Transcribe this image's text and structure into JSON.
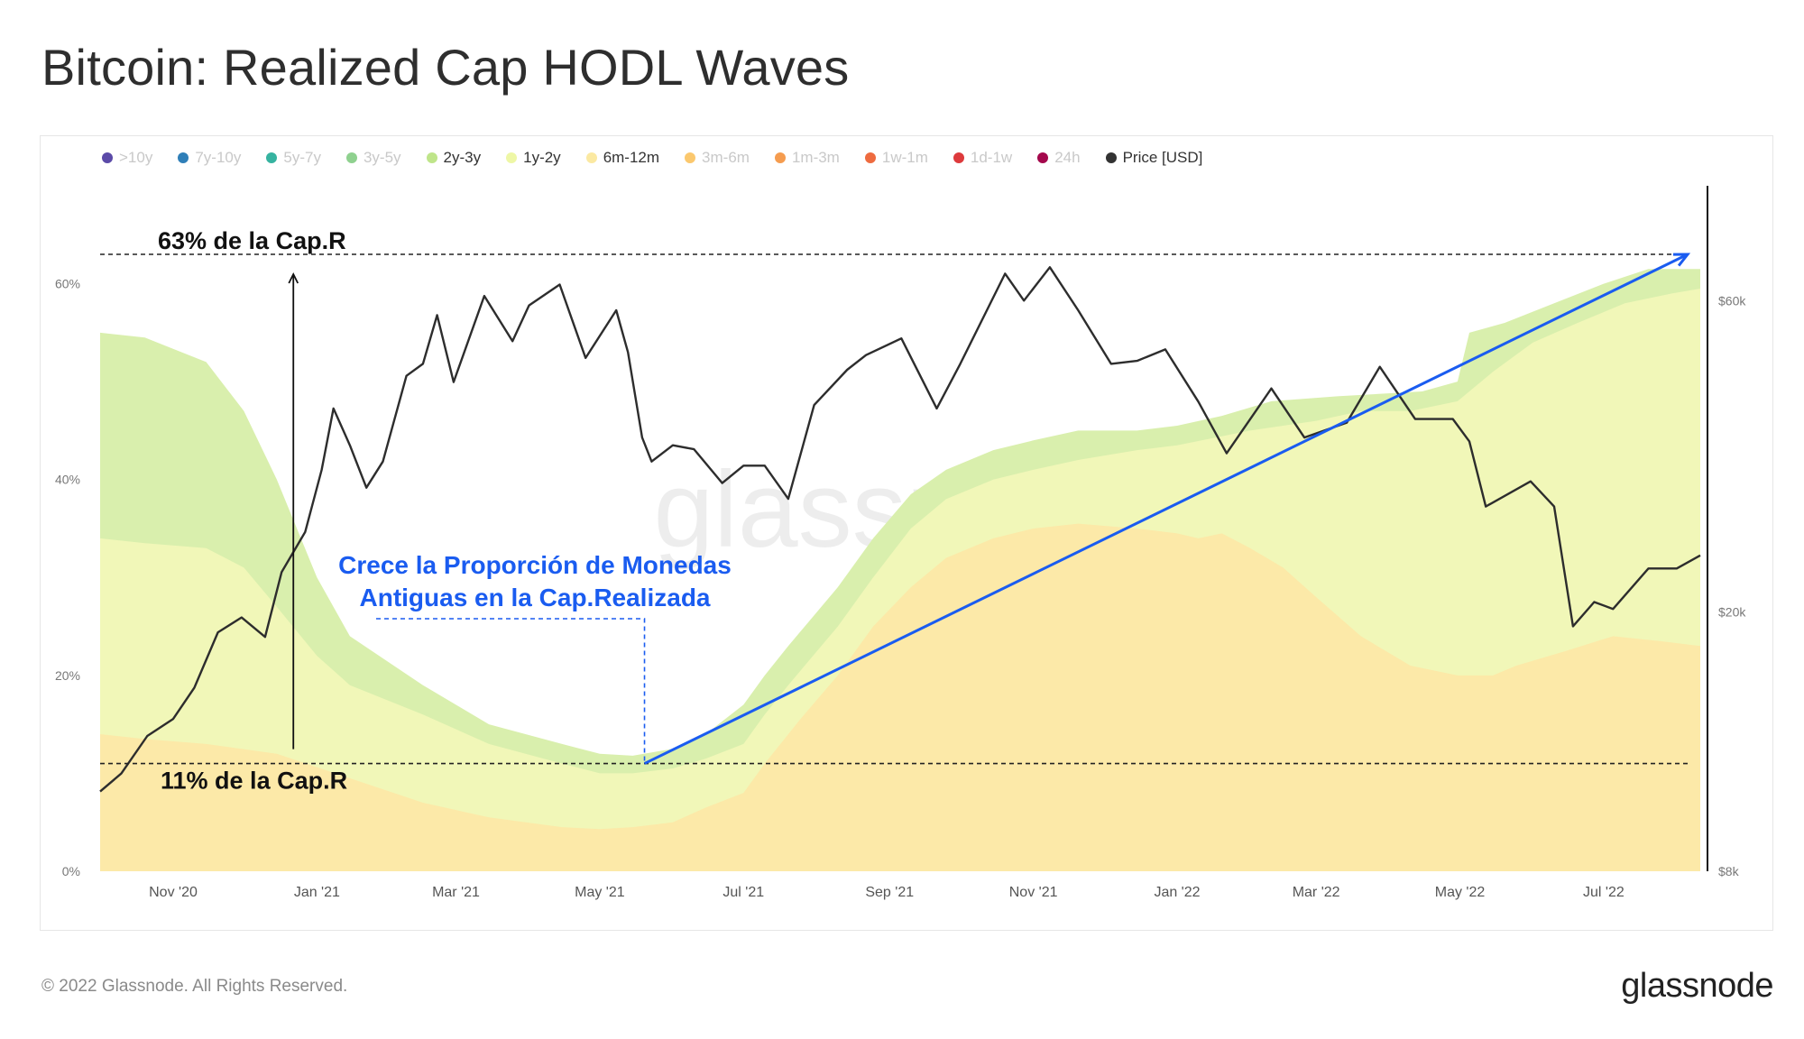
{
  "page": {
    "title": "Bitcoin: Realized Cap HODL Waves",
    "copyright": "© 2022 Glassnode. All Rights Reserved.",
    "logo": "glassnode",
    "watermark": "glassnode"
  },
  "legend": [
    {
      "label": ">10y",
      "color": "#5b4aa8",
      "active": false
    },
    {
      "label": "7y-10y",
      "color": "#2f7fb8",
      "active": false
    },
    {
      "label": "5y-7y",
      "color": "#36b3a0",
      "active": false
    },
    {
      "label": "3y-5y",
      "color": "#8fd18f",
      "active": false
    },
    {
      "label": "2y-3y",
      "color": "#bfe58a",
      "active": true
    },
    {
      "label": "1y-2y",
      "color": "#eef7a6",
      "active": true
    },
    {
      "label": "6m-12m",
      "color": "#fbe9a2",
      "active": true
    },
    {
      "label": "3m-6m",
      "color": "#fbc86e",
      "active": false
    },
    {
      "label": "1m-3m",
      "color": "#f59c4f",
      "active": false
    },
    {
      "label": "1w-1m",
      "color": "#ee6b3f",
      "active": false
    },
    {
      "label": "1d-1w",
      "color": "#dd3a3c",
      "active": false
    },
    {
      "label": "24h",
      "color": "#a4084c",
      "active": false
    },
    {
      "label": "Price [USD]",
      "color": "#333333",
      "active": true
    }
  ],
  "annotations": {
    "top_label": "63% de la Cap.R",
    "bottom_label": "11% de la Cap.R",
    "callout_line1": "Crece la Proporción de Monedas",
    "callout_line2": "Antiguas en la Cap.Realizada",
    "callout_color": "#1a5cf0"
  },
  "chart_data": {
    "type": "area",
    "x_start": "2020-10-01",
    "x_end": "2022-08-11",
    "x_ticks": [
      {
        "label": "Nov '20",
        "date": "2020-11-01"
      },
      {
        "label": "Jan '21",
        "date": "2021-01-01"
      },
      {
        "label": "Mar '21",
        "date": "2021-03-01"
      },
      {
        "label": "May '21",
        "date": "2021-05-01"
      },
      {
        "label": "Jul '21",
        "date": "2021-07-01"
      },
      {
        "label": "Sep '21",
        "date": "2021-09-01"
      },
      {
        "label": "Nov '21",
        "date": "2021-11-01"
      },
      {
        "label": "Jan '22",
        "date": "2022-01-01"
      },
      {
        "label": "Mar '22",
        "date": "2022-03-01"
      },
      {
        "label": "May '22",
        "date": "2022-05-01"
      },
      {
        "label": "Jul '22",
        "date": "2022-07-01"
      }
    ],
    "y_left": {
      "ticks": [
        0,
        20,
        40,
        60
      ],
      "tick_labels": [
        "0%",
        "20%",
        "40%",
        "60%"
      ],
      "range": [
        0,
        70
      ]
    },
    "y_right": {
      "scale": "log",
      "ticks": [
        8000,
        20000,
        60000
      ],
      "tick_labels": [
        "$8k",
        "$20k",
        "$60k"
      ],
      "range": [
        8000,
        90000
      ]
    },
    "reference_lines": [
      63,
      11
    ],
    "series": [
      {
        "name": "6m-12m",
        "color": "#fce9a8",
        "points": [
          [
            "2020-10-01",
            14
          ],
          [
            "2020-10-20",
            13.5
          ],
          [
            "2020-11-15",
            13
          ],
          [
            "2020-12-15",
            12
          ],
          [
            "2021-01-15",
            9.5
          ],
          [
            "2021-02-15",
            7
          ],
          [
            "2021-03-15",
            5.5
          ],
          [
            "2021-04-15",
            4.5
          ],
          [
            "2021-05-01",
            4.3
          ],
          [
            "2021-05-15",
            4.5
          ],
          [
            "2021-06-01",
            5
          ],
          [
            "2021-06-15",
            6.5
          ],
          [
            "2021-07-01",
            8
          ],
          [
            "2021-07-10",
            11
          ],
          [
            "2021-07-25",
            15.5
          ],
          [
            "2021-08-10",
            20
          ],
          [
            "2021-08-25",
            25
          ],
          [
            "2021-09-10",
            29
          ],
          [
            "2021-09-25",
            32
          ],
          [
            "2021-10-15",
            34
          ],
          [
            "2021-11-01",
            35
          ],
          [
            "2021-11-20",
            35.5
          ],
          [
            "2021-12-15",
            35
          ],
          [
            "2022-01-01",
            34.5
          ],
          [
            "2022-01-10",
            34
          ],
          [
            "2022-01-20",
            34.5
          ],
          [
            "2022-02-01",
            33
          ],
          [
            "2022-02-15",
            31
          ],
          [
            "2022-03-01",
            28
          ],
          [
            "2022-03-20",
            24
          ],
          [
            "2022-04-10",
            21
          ],
          [
            "2022-04-30",
            20
          ],
          [
            "2022-05-15",
            20
          ],
          [
            "2022-05-25",
            21
          ],
          [
            "2022-06-15",
            22.5
          ],
          [
            "2022-07-05",
            24
          ],
          [
            "2022-07-25",
            23.5
          ],
          [
            "2022-08-11",
            23
          ]
        ]
      },
      {
        "name": "1y-2y",
        "color": "#f1f7b8",
        "points": [
          [
            "2020-10-01",
            34
          ],
          [
            "2020-10-20",
            33.5
          ],
          [
            "2020-11-15",
            33
          ],
          [
            "2020-12-01",
            31
          ],
          [
            "2020-12-15",
            27
          ],
          [
            "2021-01-01",
            22
          ],
          [
            "2021-01-15",
            19
          ],
          [
            "2021-02-15",
            16
          ],
          [
            "2021-03-15",
            13
          ],
          [
            "2021-04-15",
            11
          ],
          [
            "2021-05-01",
            10
          ],
          [
            "2021-05-15",
            10
          ],
          [
            "2021-06-01",
            10.5
          ],
          [
            "2021-06-15",
            11.5
          ],
          [
            "2021-07-01",
            13
          ],
          [
            "2021-07-10",
            16
          ],
          [
            "2021-07-20",
            19
          ],
          [
            "2021-08-10",
            25
          ],
          [
            "2021-08-25",
            30
          ],
          [
            "2021-09-10",
            35
          ],
          [
            "2021-09-25",
            38
          ],
          [
            "2021-10-15",
            40
          ],
          [
            "2021-11-01",
            41
          ],
          [
            "2021-11-20",
            42
          ],
          [
            "2021-12-15",
            43
          ],
          [
            "2022-01-01",
            43.5
          ],
          [
            "2022-02-01",
            45
          ],
          [
            "2022-03-01",
            46
          ],
          [
            "2022-03-20",
            47
          ],
          [
            "2022-04-10",
            47
          ],
          [
            "2022-04-30",
            48
          ],
          [
            "2022-05-15",
            51
          ],
          [
            "2022-06-01",
            54
          ],
          [
            "2022-06-20",
            56
          ],
          [
            "2022-07-10",
            58
          ],
          [
            "2022-07-30",
            59
          ],
          [
            "2022-08-11",
            59.5
          ]
        ]
      },
      {
        "name": "2y-3y",
        "color": "#d9efad",
        "points": [
          [
            "2020-10-01",
            55
          ],
          [
            "2020-10-20",
            54.5
          ],
          [
            "2020-11-15",
            52
          ],
          [
            "2020-12-01",
            47
          ],
          [
            "2020-12-15",
            40
          ],
          [
            "2021-01-01",
            30
          ],
          [
            "2021-01-15",
            24
          ],
          [
            "2021-02-15",
            19
          ],
          [
            "2021-03-15",
            15
          ],
          [
            "2021-04-15",
            13
          ],
          [
            "2021-05-01",
            12
          ],
          [
            "2021-05-15",
            11.8
          ],
          [
            "2021-06-01",
            12.5
          ],
          [
            "2021-06-15",
            14
          ],
          [
            "2021-07-01",
            17
          ],
          [
            "2021-07-10",
            20
          ],
          [
            "2021-07-20",
            23
          ],
          [
            "2021-08-10",
            29
          ],
          [
            "2021-08-25",
            34
          ],
          [
            "2021-09-10",
            38.5
          ],
          [
            "2021-09-25",
            41
          ],
          [
            "2021-10-15",
            43
          ],
          [
            "2021-11-01",
            44
          ],
          [
            "2021-11-20",
            45
          ],
          [
            "2021-12-15",
            45
          ],
          [
            "2022-01-01",
            45.5
          ],
          [
            "2022-01-20",
            46.5
          ],
          [
            "2022-02-10",
            48
          ],
          [
            "2022-03-10",
            48.5
          ],
          [
            "2022-04-15",
            49
          ],
          [
            "2022-04-30",
            50
          ],
          [
            "2022-05-05",
            55
          ],
          [
            "2022-05-20",
            56
          ],
          [
            "2022-06-10",
            58
          ],
          [
            "2022-07-01",
            60
          ],
          [
            "2022-07-20",
            61.5
          ],
          [
            "2022-08-11",
            61.5
          ]
        ]
      },
      {
        "name": "Price [USD]",
        "color": "#2d2d2d",
        "points": [
          [
            "2020-10-01",
            10600
          ],
          [
            "2020-10-10",
            11300
          ],
          [
            "2020-10-21",
            12900
          ],
          [
            "2020-11-01",
            13700
          ],
          [
            "2020-11-10",
            15300
          ],
          [
            "2020-11-20",
            18600
          ],
          [
            "2020-11-30",
            19600
          ],
          [
            "2020-12-10",
            18300
          ],
          [
            "2020-12-17",
            23000
          ],
          [
            "2020-12-27",
            26500
          ],
          [
            "2021-01-03",
            33000
          ],
          [
            "2021-01-08",
            41000
          ],
          [
            "2021-01-15",
            36000
          ],
          [
            "2021-01-22",
            31000
          ],
          [
            "2021-01-29",
            34000
          ],
          [
            "2021-02-08",
            46000
          ],
          [
            "2021-02-15",
            48000
          ],
          [
            "2021-02-21",
            57000
          ],
          [
            "2021-02-28",
            45000
          ],
          [
            "2021-03-13",
            61000
          ],
          [
            "2021-03-25",
            52000
          ],
          [
            "2021-04-01",
            59000
          ],
          [
            "2021-04-14",
            63500
          ],
          [
            "2021-04-25",
            49000
          ],
          [
            "2021-05-08",
            58000
          ],
          [
            "2021-05-13",
            50000
          ],
          [
            "2021-05-19",
            37000
          ],
          [
            "2021-05-23",
            34000
          ],
          [
            "2021-06-01",
            36000
          ],
          [
            "2021-06-10",
            35500
          ],
          [
            "2021-06-22",
            31500
          ],
          [
            "2021-07-01",
            33500
          ],
          [
            "2021-07-10",
            33500
          ],
          [
            "2021-07-20",
            29800
          ],
          [
            "2021-07-31",
            41500
          ],
          [
            "2021-08-14",
            47000
          ],
          [
            "2021-08-22",
            49500
          ],
          [
            "2021-09-06",
            52500
          ],
          [
            "2021-09-21",
            41000
          ],
          [
            "2021-10-01",
            48000
          ],
          [
            "2021-10-20",
            66000
          ],
          [
            "2021-10-28",
            60000
          ],
          [
            "2021-11-08",
            67500
          ],
          [
            "2021-11-20",
            58000
          ],
          [
            "2021-12-04",
            48000
          ],
          [
            "2021-12-15",
            48500
          ],
          [
            "2021-12-27",
            50500
          ],
          [
            "2022-01-10",
            42000
          ],
          [
            "2022-01-22",
            35000
          ],
          [
            "2022-02-10",
            44000
          ],
          [
            "2022-02-24",
            37000
          ],
          [
            "2022-03-14",
            39000
          ],
          [
            "2022-03-28",
            47500
          ],
          [
            "2022-04-12",
            39500
          ],
          [
            "2022-04-28",
            39500
          ],
          [
            "2022-05-05",
            36500
          ],
          [
            "2022-05-12",
            29000
          ],
          [
            "2022-05-31",
            31700
          ],
          [
            "2022-06-10",
            29000
          ],
          [
            "2022-06-18",
            19000
          ],
          [
            "2022-06-27",
            20700
          ],
          [
            "2022-07-05",
            20200
          ],
          [
            "2022-07-20",
            23300
          ],
          [
            "2022-08-01",
            23300
          ],
          [
            "2022-08-11",
            24400
          ]
        ]
      }
    ]
  }
}
